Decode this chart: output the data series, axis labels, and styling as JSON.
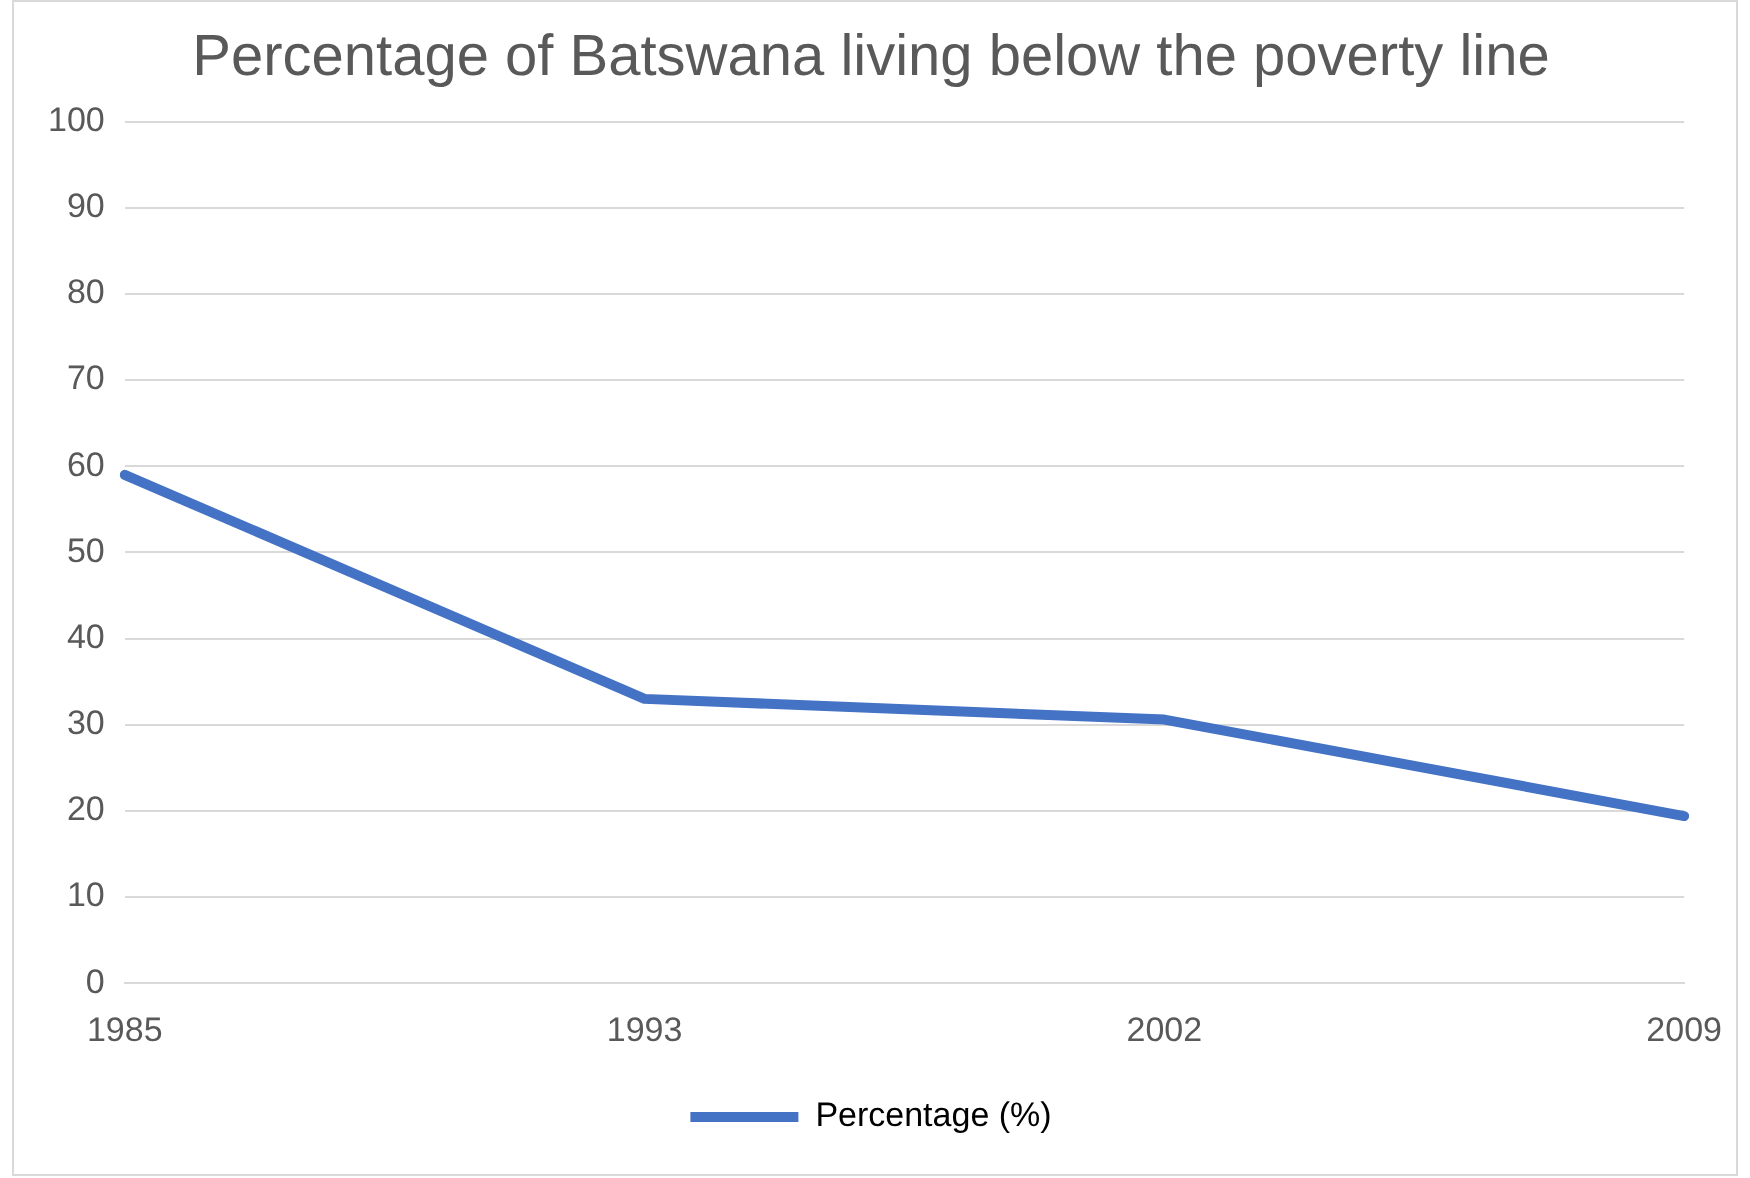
{
  "chart_data": {
    "type": "line",
    "title": "Percentage of Batswana living below the poverty line",
    "categories": [
      "1985",
      "1993",
      "2002",
      "2009"
    ],
    "series": [
      {
        "name": "Percentage (%)",
        "color": "#4472c4",
        "values": [
          59,
          33,
          30.6,
          19.4
        ]
      }
    ],
    "ylim": [
      0,
      100
    ],
    "yticks": [
      0,
      10,
      20,
      30,
      40,
      50,
      60,
      70,
      80,
      90,
      100
    ],
    "grid": "y",
    "legend": "bottom",
    "marker": "none",
    "line_style": "solid"
  }
}
